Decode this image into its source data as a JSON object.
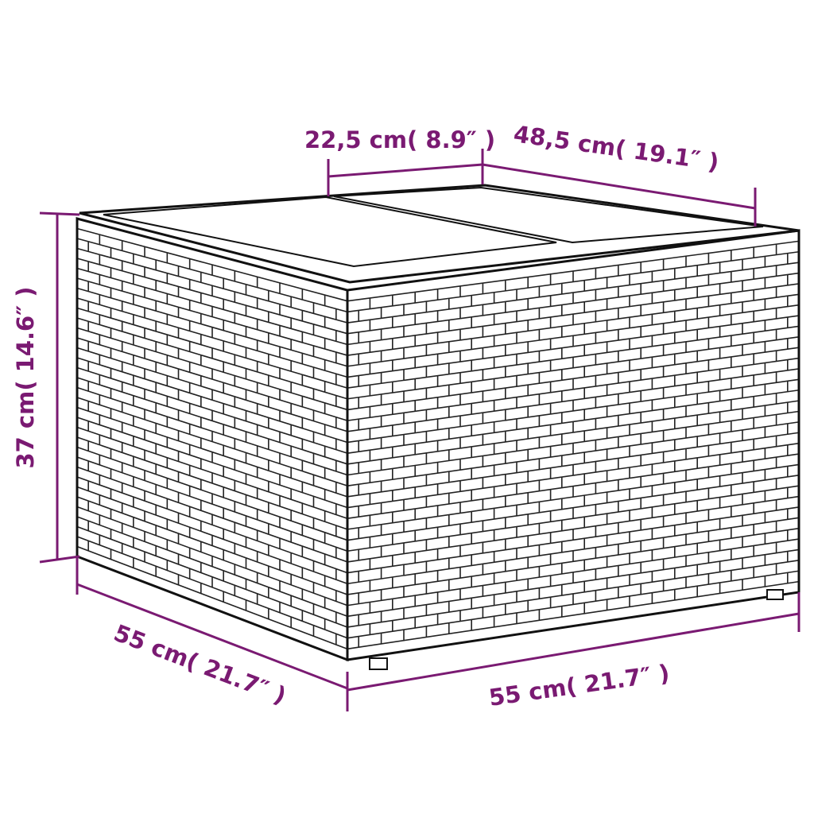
{
  "colors": {
    "dimension": "#7a1a72",
    "outline": "#111111",
    "background": "#ffffff"
  },
  "product": "rattan side table with glass top",
  "dimensions": {
    "top_panel_width": "22,5 cm( 8.9″ )",
    "top_depth": "48,5 cm( 19.1″ )",
    "height": "37 cm( 14.6″ )",
    "side_depth": "55 cm( 21.7″ )",
    "front_width": "55 cm( 21.7″ )"
  }
}
